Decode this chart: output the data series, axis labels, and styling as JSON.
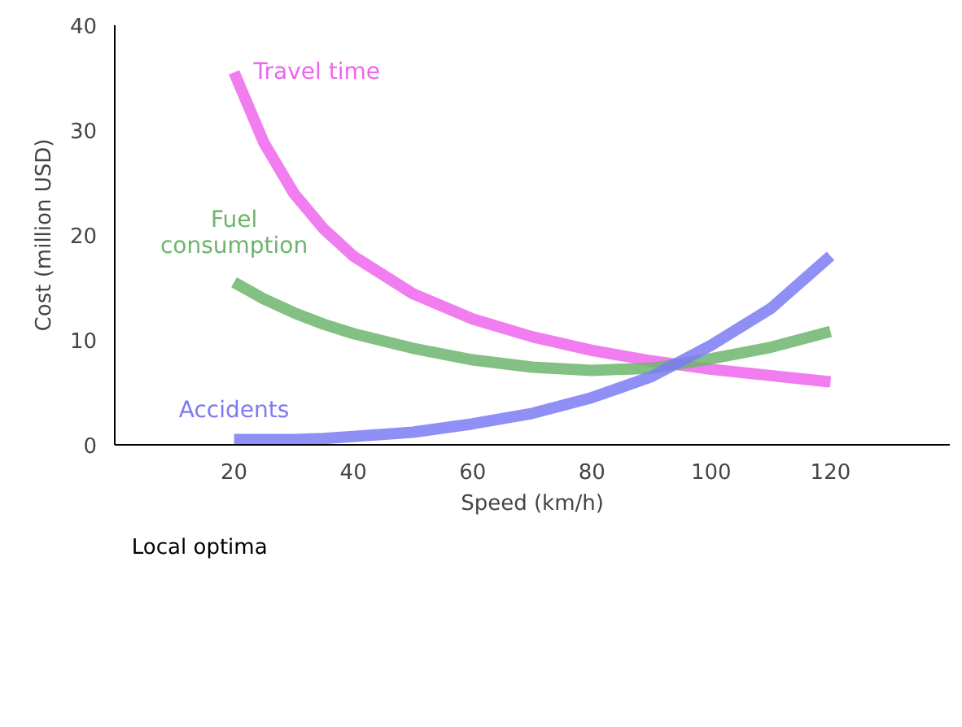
{
  "chart_data": {
    "type": "line",
    "xlabel": "Speed (km/h)",
    "ylabel": "Cost (million USD)",
    "xlim": [
      0,
      140
    ],
    "ylim": [
      0,
      40
    ],
    "xticks": [
      20,
      40,
      60,
      80,
      100,
      120
    ],
    "yticks": [
      0,
      10,
      20,
      30,
      40
    ],
    "line_style": "solid",
    "x": [
      20,
      25,
      30,
      35,
      40,
      50,
      60,
      70,
      80,
      90,
      100,
      110,
      120
    ],
    "series": [
      {
        "name": "Travel time",
        "color": "#ee66ee",
        "values": [
          35.5,
          28.8,
          24,
          20.6,
          18,
          14.4,
          12,
          10.3,
          9,
          8,
          7.2,
          6.6,
          6
        ]
      },
      {
        "name": "Fuel\nconsumption",
        "color": "#6db56d",
        "values": [
          15.5,
          13.9,
          12.6,
          11.5,
          10.6,
          9.2,
          8.1,
          7.4,
          7.1,
          7.3,
          8.2,
          9.3,
          10.8
        ]
      },
      {
        "name": "Accidents",
        "color": "#7b7bf5",
        "values": [
          0.5,
          0.5,
          0.5,
          0.6,
          0.8,
          1.2,
          2,
          3,
          4.5,
          6.5,
          9.5,
          13,
          18
        ]
      }
    ],
    "annotations": [
      "Local optima"
    ]
  }
}
